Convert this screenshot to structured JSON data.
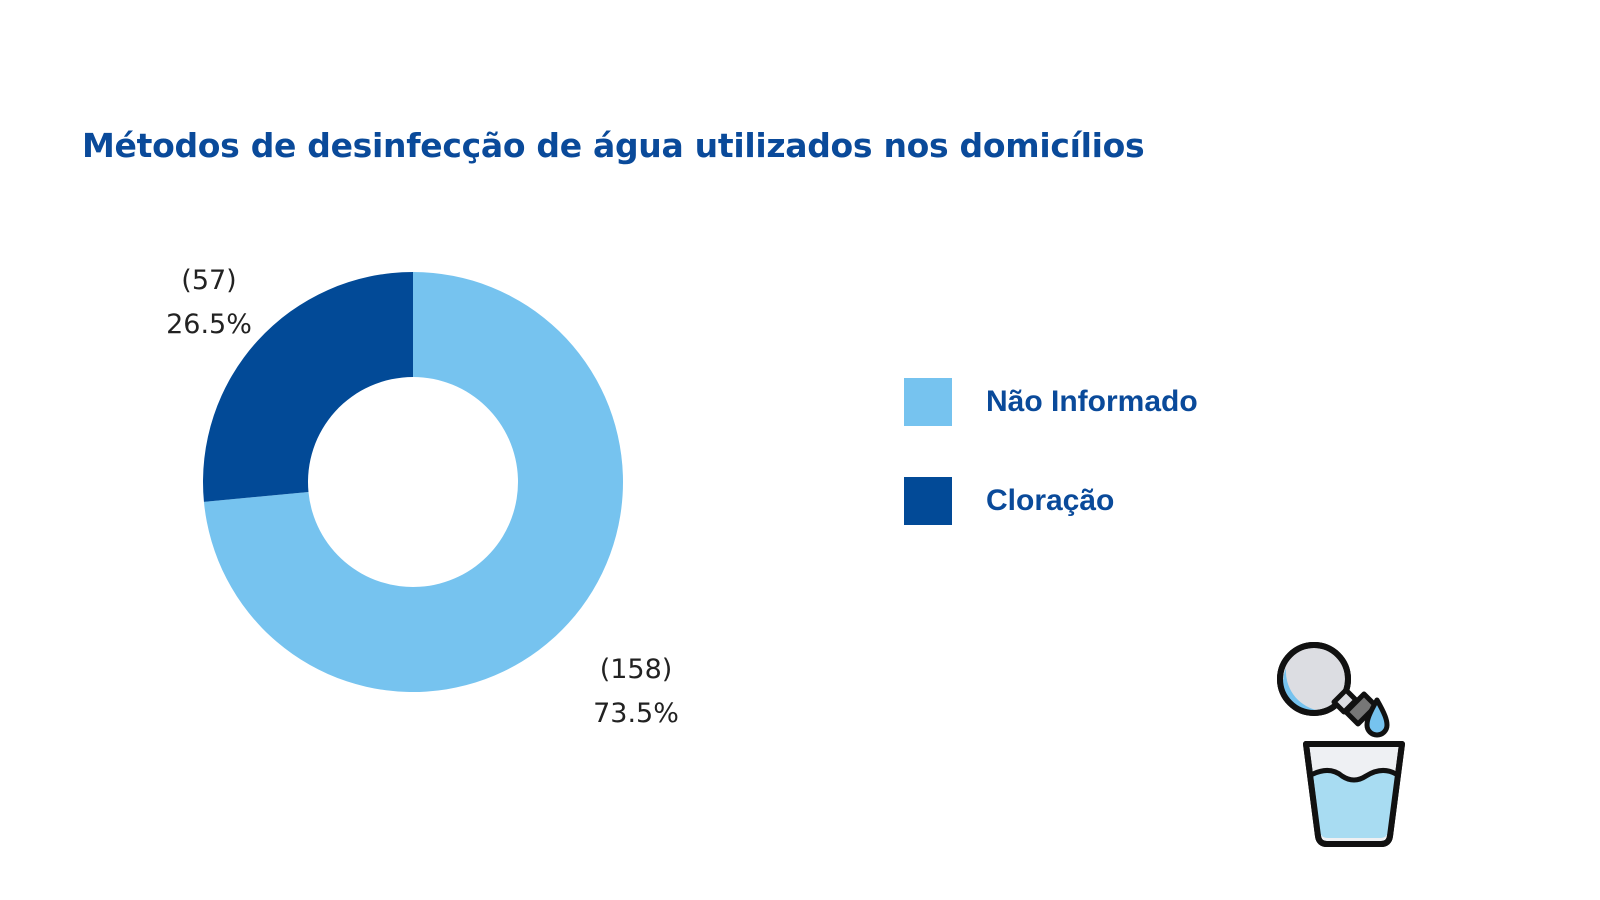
{
  "chart_data": {
    "type": "pie",
    "title": "Métodos de desinfecção de água utilizados nos domicílios",
    "donut": true,
    "slices": [
      {
        "name": "Não Informado",
        "value": 158,
        "percent_label": "73.5%",
        "count_label": "(158)",
        "color": "#76c3ef"
      },
      {
        "name": "Cloração",
        "value": 57,
        "percent_label": "26.5%",
        "count_label": "(57)",
        "color": "#024a97"
      }
    ],
    "legend_position": "right"
  },
  "colors": {
    "title": "#0a4a9a",
    "legend_text": "#0a4a9a",
    "label_text": "#222222"
  },
  "icon": {
    "name": "water-bottle-pouring-into-glass-icon"
  }
}
